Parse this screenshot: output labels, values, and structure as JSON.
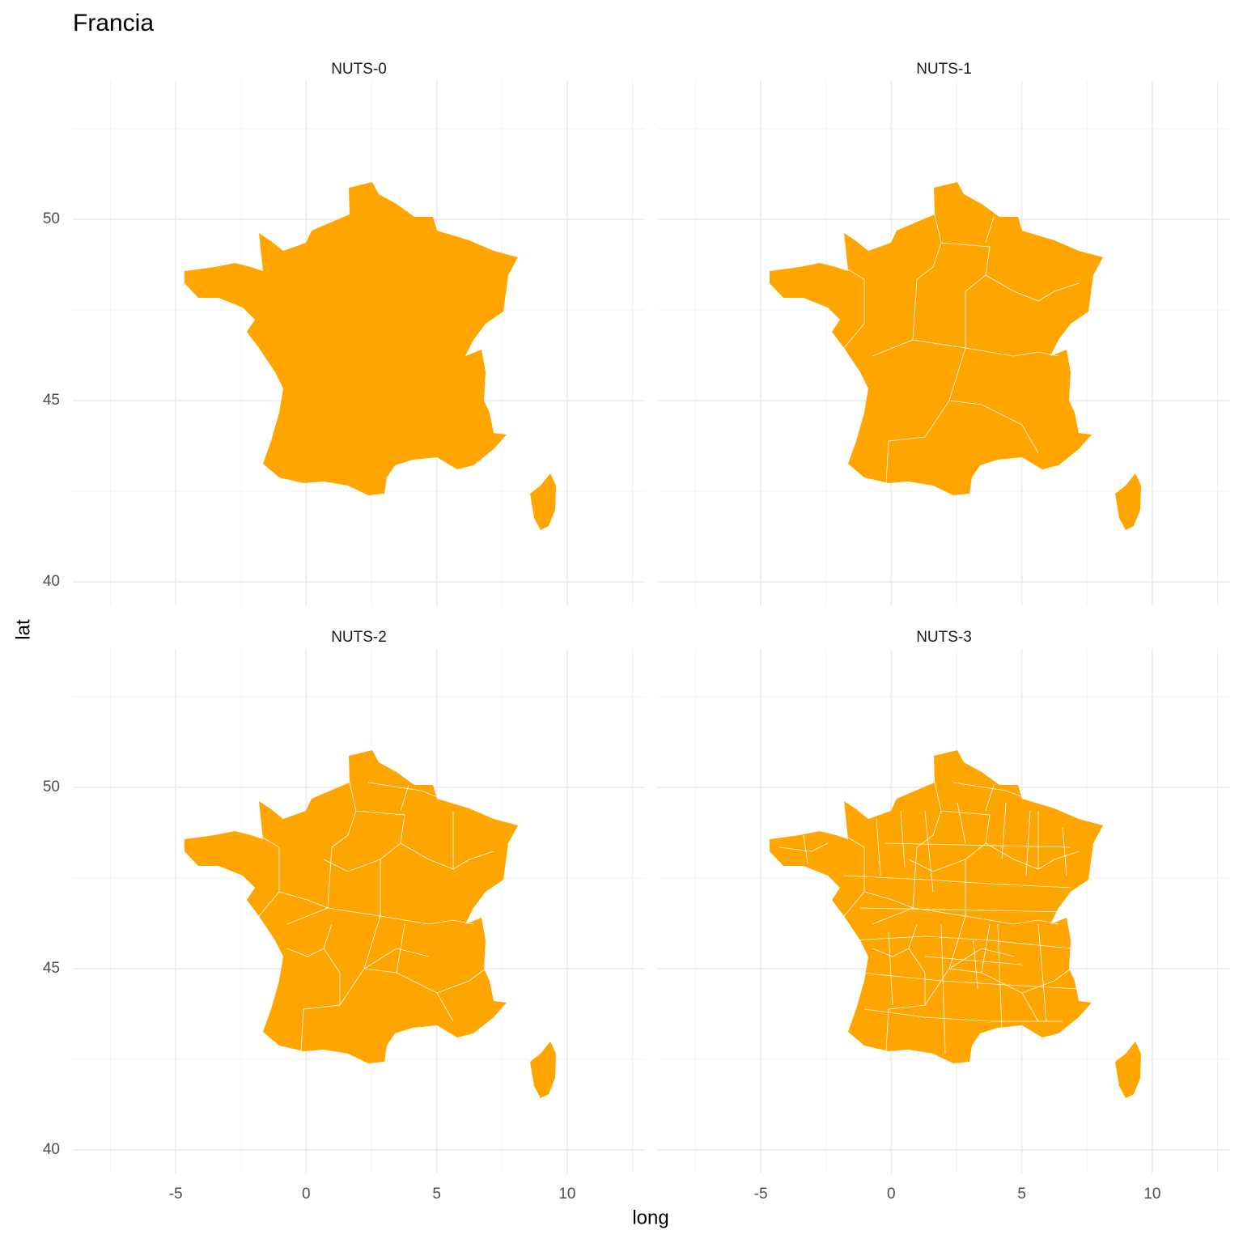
{
  "chart_data": {
    "type": "map",
    "title": "Francia",
    "x_label": "long",
    "y_label": "lat",
    "facets": [
      {
        "title": "NUTS-0"
      },
      {
        "title": "NUTS-1"
      },
      {
        "title": "NUTS-2"
      },
      {
        "title": "NUTS-3"
      }
    ],
    "color": "#FFA500",
    "xlim": [
      -8.94,
      12.98
    ],
    "ylim": [
      39.35,
      53.82
    ],
    "xticks": [
      -5,
      0,
      5,
      10
    ],
    "yticks": [
      40,
      45,
      50
    ],
    "xminor": [
      -7.5,
      -2.5,
      2.5,
      7.5,
      12.5
    ],
    "yminor": [
      42.5,
      47.5,
      52.5
    ],
    "grid": true
  }
}
